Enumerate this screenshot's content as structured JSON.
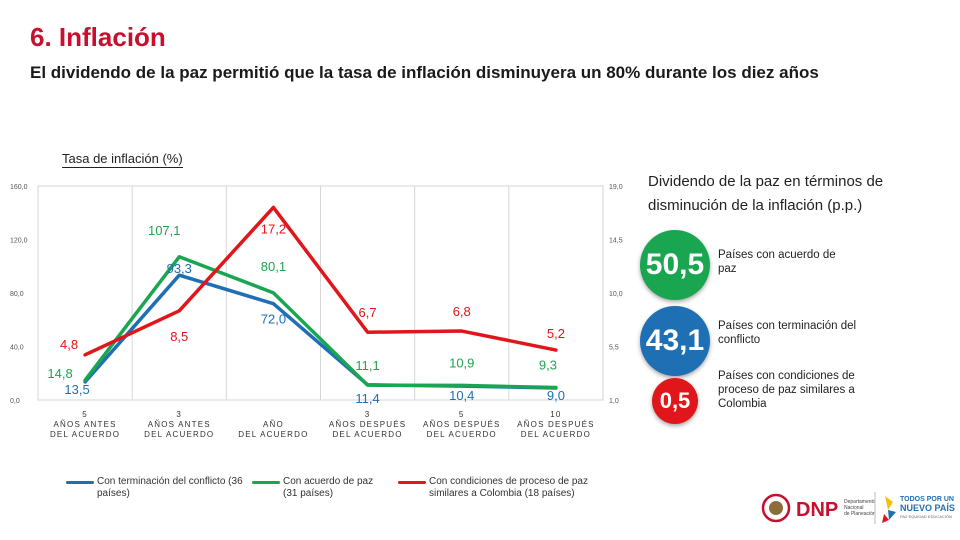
{
  "header": {
    "title": "6. Inflación",
    "subtitle": "El dividendo de la paz permitió que la tasa de inflación disminuyera un 80% durante los diez años"
  },
  "chart_label": "Tasa de inflación (%)",
  "chart_data": {
    "type": "line",
    "categories": [
      [
        "5",
        "AÑOS ANTES",
        "DEL ACUERDO"
      ],
      [
        "3",
        "AÑOS ANTES",
        "DEL ACUERDO"
      ],
      [
        "",
        "AÑO",
        "DEL ACUERDO"
      ],
      [
        "3",
        "AÑOS DESPUÉS",
        "DEL ACUERDO"
      ],
      [
        "5",
        "AÑOS DESPUÉS",
        "DEL ACUERDO"
      ],
      [
        "10",
        "AÑOS DESPUÉS",
        "DEL ACUERDO"
      ]
    ],
    "y_left": {
      "ticks": [
        "0,0",
        "40,0",
        "80,0",
        "120,0",
        "160,0"
      ],
      "range": [
        0,
        160
      ]
    },
    "y_right": {
      "ticks": [
        "1,0",
        "5,5",
        "10,0",
        "14,5",
        "19,0"
      ],
      "range": [
        1,
        19
      ]
    },
    "grid": "vertical",
    "series": [
      {
        "name": "Con terminación del conflicto (36 países)",
        "axis": "left",
        "color": "#1f6fb5",
        "values": [
          13.5,
          93.3,
          72.0,
          11.4,
          10.4,
          9.0
        ],
        "labels": [
          "13,5",
          "93,3",
          "72,0",
          "11,4",
          "10,4",
          "9,0"
        ]
      },
      {
        "name": "Con acuerdo de paz (31 países)",
        "axis": "left",
        "color": "#1aa650",
        "values": [
          14.8,
          107.1,
          80.1,
          11.1,
          10.9,
          9.3
        ],
        "labels": [
          "14,8",
          "107,1",
          "80,1",
          "11,1",
          "10,9",
          "9,3"
        ]
      },
      {
        "name": "Con condiciones de proceso de paz similares a Colombia (18 países)",
        "axis": "right",
        "color": "#e0161b",
        "values": [
          4.8,
          8.5,
          17.2,
          6.7,
          6.8,
          5.2
        ],
        "labels": [
          "4,8",
          "8,5",
          "17,2",
          "6,7",
          "6,8",
          "5,2"
        ]
      }
    ]
  },
  "legend": {
    "blue": "Con terminación del conflicto (36 países)",
    "green": "Con acuerdo de paz (31 países)",
    "red": "Con condiciones de proceso de paz similares a Colombia (18 países)"
  },
  "dividend": {
    "title": "Dividendo de la paz en términos de disminución de la inflación (p.p.)",
    "items": [
      {
        "value": "50,5",
        "label": "Países con acuerdo de paz",
        "color": "#1aa650"
      },
      {
        "value": "43,1",
        "label": "Países con terminación del conflicto",
        "color": "#1f6fb5"
      },
      {
        "value": "0,5",
        "label": "Países con condiciones de proceso de paz similares a Colombia",
        "color": "#e0161b"
      }
    ]
  },
  "logos": {
    "dnp": "DNP",
    "dnp_sub1": "Departamento",
    "dnp_sub2": "Nacional",
    "dnp_sub3": "de Planeación",
    "gov1": "TODOS POR UN",
    "gov2": "NUEVO PAÍS",
    "gov3": "PAZ EQUIDAD EDUCACIÓN"
  }
}
